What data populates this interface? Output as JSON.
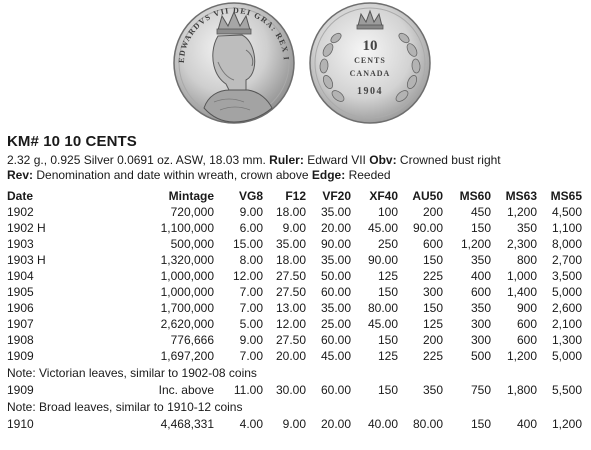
{
  "title": "KM# 10  10 CENTS",
  "specs": {
    "line1_text": "2.32 g., 0.925 Silver 0.0691 oz. ASW, 18.03 mm.",
    "ruler_label": "Ruler:",
    "ruler_value": "Edward VII",
    "obv_label": "Obv:",
    "obv_value": "Crowned bust right",
    "rev_label": "Rev:",
    "rev_value": "Denomination and date within wreath, crown above",
    "edge_label": "Edge:",
    "edge_value": "Reeded"
  },
  "coin_images": {
    "obverse_legend": "EDWARDVS VII DEI GRA: REX IMPERATOR",
    "reverse_value": "10",
    "reverse_cents": "CENTS",
    "reverse_canada": "CANADA",
    "reverse_year": "1904"
  },
  "columns": [
    "Date",
    "Mintage",
    "VG8",
    "F12",
    "VF20",
    "XF40",
    "AU50",
    "MS60",
    "MS63",
    "MS65"
  ],
  "rows": [
    [
      "1902",
      "720,000",
      "9.00",
      "18.00",
      "35.00",
      "100",
      "200",
      "450",
      "1,200",
      "4,500"
    ],
    [
      "1902 H",
      "1,100,000",
      "6.00",
      "9.00",
      "20.00",
      "45.00",
      "90.00",
      "150",
      "350",
      "1,100"
    ],
    [
      "1903",
      "500,000",
      "15.00",
      "35.00",
      "90.00",
      "250",
      "600",
      "1,200",
      "2,300",
      "8,000"
    ],
    [
      "1903 H",
      "1,320,000",
      "8.00",
      "18.00",
      "35.00",
      "90.00",
      "150",
      "350",
      "800",
      "2,700"
    ],
    [
      "1904",
      "1,000,000",
      "12.00",
      "27.50",
      "50.00",
      "125",
      "225",
      "400",
      "1,000",
      "3,500"
    ],
    [
      "1905",
      "1,000,000",
      "7.00",
      "27.50",
      "60.00",
      "150",
      "300",
      "600",
      "1,400",
      "5,000"
    ],
    [
      "1906",
      "1,700,000",
      "7.00",
      "13.00",
      "35.00",
      "80.00",
      "150",
      "350",
      "900",
      "2,600"
    ],
    [
      "1907",
      "2,620,000",
      "5.00",
      "12.00",
      "25.00",
      "45.00",
      "125",
      "300",
      "600",
      "2,100"
    ],
    [
      "1908",
      "776,666",
      "9.00",
      "27.50",
      "60.00",
      "150",
      "200",
      "300",
      "600",
      "1,300"
    ],
    [
      "1909",
      "1,697,200",
      "7.00",
      "20.00",
      "45.00",
      "125",
      "225",
      "500",
      "1,200",
      "5,000"
    ]
  ],
  "note1": "Note: Victorian leaves, similar to 1902-08 coins",
  "row_1909b": [
    "1909",
    "Inc. above",
    "11.00",
    "30.00",
    "60.00",
    "150",
    "350",
    "750",
    "1,800",
    "5,500"
  ],
  "note2": "Note: Broad leaves, similar to 1910-12 coins",
  "row_1910": [
    "1910",
    "4,468,331",
    "4.00",
    "9.00",
    "20.00",
    "40.00",
    "80.00",
    "150",
    "400",
    "1,200"
  ]
}
